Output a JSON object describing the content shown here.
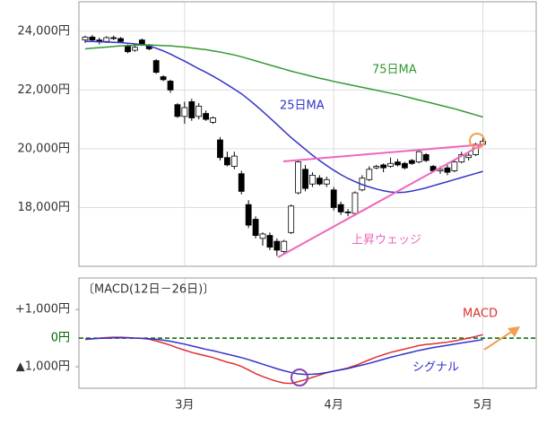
{
  "chart_data": [
    {
      "type": "candlestick",
      "open": [
        23700,
        23800,
        23700,
        23650,
        23780,
        23750,
        23500,
        23350,
        23700,
        23500,
        23000,
        22450,
        22300,
        21500,
        21100,
        21600,
        21100,
        21200,
        20900,
        20300,
        19700,
        19400,
        19150,
        18100,
        17600,
        16950,
        17050,
        16850,
        16500,
        17150,
        18500,
        19300,
        18800,
        19000,
        18800,
        18600,
        18100,
        17850,
        17800,
        18600,
        18950,
        19350,
        19450,
        19400,
        19550,
        19500,
        19600,
        19550,
        19800,
        19400,
        19250,
        19350,
        19250,
        19550,
        19700,
        19800,
        20150
      ],
      "high": [
        23850,
        23870,
        23780,
        23830,
        23850,
        23800,
        23550,
        23550,
        23750,
        23560,
        23050,
        22500,
        22350,
        21550,
        21600,
        21700,
        21550,
        21300,
        21100,
        20400,
        19900,
        19900,
        19250,
        18250,
        17700,
        17150,
        17150,
        16950,
        16900,
        18100,
        19600,
        19450,
        19200,
        19100,
        19050,
        18700,
        18200,
        17950,
        18550,
        19100,
        19400,
        19450,
        19500,
        19700,
        19650,
        19550,
        19650,
        19950,
        19850,
        19450,
        19400,
        19450,
        19600,
        19900,
        19850,
        20200,
        20400
      ],
      "low": [
        23600,
        23650,
        23550,
        23600,
        23700,
        23600,
        23250,
        23300,
        23500,
        23350,
        22550,
        22300,
        21900,
        21050,
        20850,
        20950,
        21000,
        20950,
        20850,
        19600,
        19400,
        19300,
        18450,
        17300,
        16950,
        16700,
        16550,
        16350,
        16400,
        17100,
        18450,
        18550,
        18700,
        18750,
        18700,
        17900,
        17750,
        17700,
        17750,
        18550,
        18900,
        19300,
        19200,
        19350,
        19400,
        19300,
        19450,
        19500,
        19550,
        19200,
        19150,
        19100,
        19200,
        19500,
        19600,
        19750,
        20100
      ],
      "close": [
        23800,
        23700,
        23650,
        23780,
        23750,
        23650,
        23300,
        23450,
        23550,
        23400,
        22600,
        22350,
        22000,
        21100,
        21400,
        21050,
        21450,
        21000,
        21050,
        19700,
        19450,
        19750,
        18550,
        17400,
        17050,
        17100,
        16650,
        16550,
        16850,
        18050,
        19550,
        18650,
        19100,
        18800,
        18950,
        18000,
        17850,
        17820,
        18500,
        19000,
        19300,
        19400,
        19350,
        19500,
        19450,
        19350,
        19500,
        19900,
        19600,
        19250,
        19300,
        19200,
        19550,
        19800,
        19780,
        20150,
        20250
      ],
      "up_color": "#ffffff",
      "down_color": "#000000",
      "series": [
        {
          "name": "25日MA",
          "color": "#3333cc",
          "values": [
            23650,
            23650,
            23640,
            23630,
            23620,
            23610,
            23590,
            23570,
            23540,
            23500,
            23420,
            23330,
            23220,
            23100,
            22980,
            22850,
            22720,
            22600,
            22470,
            22330,
            22180,
            22030,
            21870,
            21680,
            21480,
            21270,
            21050,
            20830,
            20600,
            20380,
            20180,
            19980,
            19780,
            19600,
            19430,
            19270,
            19120,
            18990,
            18880,
            18780,
            18700,
            18630,
            18570,
            18530,
            18510,
            18520,
            18560,
            18610,
            18670,
            18740,
            18810,
            18880,
            18950,
            19020,
            19090,
            19160,
            19230
          ]
        },
        {
          "name": "75日MA",
          "color": "#339933",
          "values": [
            23400,
            23420,
            23440,
            23460,
            23480,
            23500,
            23510,
            23520,
            23530,
            23530,
            23520,
            23510,
            23500,
            23480,
            23460,
            23430,
            23400,
            23370,
            23330,
            23290,
            23240,
            23190,
            23130,
            23060,
            22990,
            22920,
            22850,
            22780,
            22710,
            22640,
            22580,
            22520,
            22460,
            22400,
            22350,
            22290,
            22240,
            22190,
            22140,
            22090,
            22040,
            21990,
            21940,
            21890,
            21840,
            21780,
            21720,
            21660,
            21600,
            21540,
            21480,
            21420,
            21360,
            21290,
            21220,
            21150,
            21080
          ]
        }
      ],
      "annotations": [
        "上昇ウェッジ"
      ],
      "ylim": [
        16000,
        25000
      ],
      "yticks": [
        {
          "value": 18000,
          "label": "18,000円"
        },
        {
          "value": 20000,
          "label": "20,000円"
        },
        {
          "value": 22000,
          "label": "22,000円"
        },
        {
          "value": 24000,
          "label": "24,000円"
        }
      ],
      "grid": true
    },
    {
      "type": "line",
      "title": "〔MACD(12日－26日)〕",
      "categories": [
        null,
        null,
        null,
        null,
        null,
        null,
        null,
        null,
        null,
        null,
        null,
        null,
        null,
        null,
        "3月",
        null,
        null,
        null,
        null,
        null,
        null,
        null,
        null,
        null,
        null,
        null,
        null,
        null,
        null,
        null,
        null,
        null,
        null,
        null,
        null,
        "4月",
        null,
        null,
        null,
        null,
        null,
        null,
        null,
        null,
        null,
        null,
        null,
        null,
        null,
        null,
        null,
        null,
        null,
        null,
        null,
        null,
        "5月"
      ],
      "series": [
        {
          "name": "MACD",
          "color": "#e03030",
          "values": [
            -50,
            -30,
            0,
            20,
            30,
            30,
            20,
            0,
            -10,
            -40,
            -100,
            -170,
            -250,
            -340,
            -420,
            -500,
            -560,
            -620,
            -680,
            -760,
            -840,
            -900,
            -990,
            -1110,
            -1240,
            -1340,
            -1430,
            -1510,
            -1570,
            -1580,
            -1520,
            -1450,
            -1370,
            -1290,
            -1210,
            -1150,
            -1100,
            -1040,
            -960,
            -860,
            -760,
            -660,
            -580,
            -500,
            -440,
            -380,
            -320,
            -260,
            -220,
            -200,
            -170,
            -140,
            -100,
            -50,
            0,
            60,
            120
          ]
        },
        {
          "name": "シグナル",
          "color": "#3333cc",
          "values": [
            -30,
            -20,
            -10,
            0,
            10,
            10,
            10,
            0,
            -10,
            -20,
            -40,
            -70,
            -110,
            -160,
            -210,
            -270,
            -330,
            -390,
            -440,
            -500,
            -560,
            -620,
            -680,
            -750,
            -830,
            -910,
            -990,
            -1070,
            -1140,
            -1200,
            -1250,
            -1270,
            -1260,
            -1240,
            -1200,
            -1150,
            -1110,
            -1060,
            -1000,
            -940,
            -880,
            -810,
            -740,
            -670,
            -610,
            -550,
            -490,
            -430,
            -380,
            -330,
            -290,
            -250,
            -210,
            -170,
            -130,
            -90,
            -50
          ]
        }
      ],
      "ylim": [
        -1750,
        2100
      ],
      "yticks": [
        {
          "value": -1000,
          "label": "▲1,000円"
        },
        {
          "value": 0,
          "label": "0円"
        },
        {
          "value": 1000,
          "label": "+1,000円"
        }
      ],
      "zero_line_color": "#006600",
      "grid": true
    }
  ]
}
